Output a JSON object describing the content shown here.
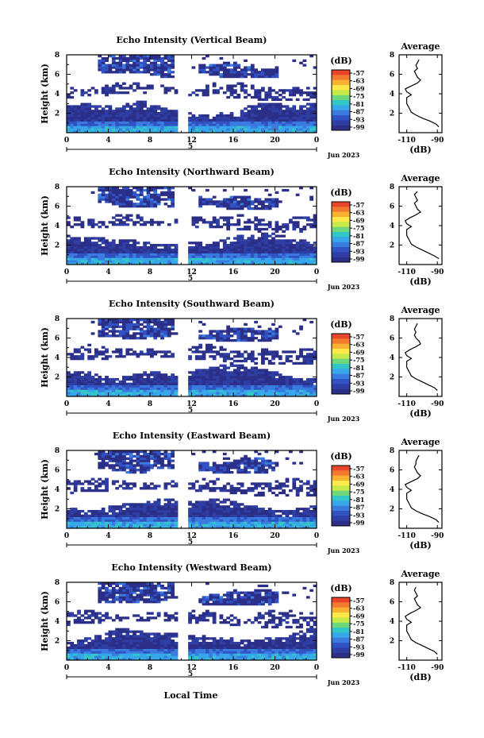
{
  "xlabel": "Local Time",
  "date_label": "Jun 2023",
  "day_label": "5",
  "y_label": "Height (km)",
  "avg_title": "Average",
  "avg_xlabel": "(dB)",
  "cbar_unit": "(dB)",
  "chart_data": [
    {
      "type": "heatmap",
      "title": "Echo Intensity (Vertical Beam)",
      "xlabel": "",
      "ylabel": "Height (km)",
      "xlim": [
        0,
        24
      ],
      "ylim": [
        0,
        8
      ],
      "xticks": [
        "0",
        "4",
        "8",
        "12",
        "16",
        "20",
        "0"
      ],
      "yticks": [
        "2",
        "4",
        "6",
        "8"
      ],
      "colorbar": {
        "label": "(dB)",
        "ticks": [
          "-57",
          "-63",
          "-69",
          "-75",
          "-81",
          "-87",
          "-93",
          "-99"
        ]
      },
      "data_gap": [
        10.5,
        11.8
      ],
      "average_profile": {
        "title": "Average",
        "xlabel": "(dB)",
        "xticks": [
          "-110",
          "-90"
        ],
        "yticks": [
          "2",
          "4",
          "6",
          "8"
        ],
        "height_km": [
          0.6,
          0.9,
          1.2,
          1.5,
          1.8,
          2.1,
          2.4,
          2.7,
          3.0,
          3.3,
          3.6,
          3.9,
          4.2,
          4.5,
          4.8,
          5.1,
          5.4,
          5.7,
          6.0,
          6.3,
          6.6,
          6.9,
          7.2,
          7.5
        ],
        "db": [
          -89,
          -91,
          -95,
          -100,
          -104,
          -107,
          -108,
          -109,
          -110,
          -110,
          -110,
          -107,
          -110,
          -111,
          -107,
          -103,
          -101,
          -103,
          -104,
          -105,
          -103,
          -104,
          -103,
          -102
        ]
      }
    },
    {
      "type": "heatmap",
      "title": "Echo Intensity (Northward Beam)",
      "xlabel": "",
      "ylabel": "Height (km)",
      "xlim": [
        0,
        24
      ],
      "ylim": [
        0,
        8
      ],
      "xticks": [
        "0",
        "4",
        "8",
        "12",
        "16",
        "20",
        "0"
      ],
      "yticks": [
        "2",
        "4",
        "6",
        "8"
      ],
      "colorbar": {
        "label": "(dB)",
        "ticks": [
          "-57",
          "-63",
          "-69",
          "-75",
          "-81",
          "-87",
          "-93",
          "-99"
        ]
      },
      "data_gap": [
        10.5,
        11.8
      ],
      "average_profile": {
        "title": "Average",
        "xlabel": "(dB)",
        "xticks": [
          "-110",
          "-90"
        ],
        "yticks": [
          "2",
          "4",
          "6",
          "8"
        ],
        "height_km": [
          0.6,
          0.9,
          1.2,
          1.5,
          1.8,
          2.1,
          2.4,
          2.7,
          3.0,
          3.3,
          3.6,
          3.9,
          4.2,
          4.5,
          4.8,
          5.1,
          5.4,
          5.7,
          6.0,
          6.3,
          6.6,
          6.9,
          7.2,
          7.5
        ],
        "db": [
          -89,
          -92,
          -96,
          -100,
          -104,
          -107,
          -108,
          -109,
          -110,
          -110,
          -110,
          -107,
          -110,
          -111,
          -108,
          -104,
          -101,
          -103,
          -104,
          -105,
          -103,
          -104,
          -105,
          -103
        ]
      }
    },
    {
      "type": "heatmap",
      "title": "Echo Intensity (Southward Beam)",
      "xlabel": "",
      "ylabel": "Height (km)",
      "xlim": [
        0,
        24
      ],
      "ylim": [
        0,
        8
      ],
      "xticks": [
        "0",
        "4",
        "8",
        "12",
        "16",
        "20",
        "0"
      ],
      "yticks": [
        "2",
        "4",
        "6",
        "8"
      ],
      "colorbar": {
        "label": "(dB)",
        "ticks": [
          "-57",
          "-63",
          "-69",
          "-75",
          "-81",
          "-87",
          "-93",
          "-99"
        ]
      },
      "data_gap": [
        10.5,
        11.8
      ],
      "average_profile": {
        "title": "Average",
        "xlabel": "(dB)",
        "xticks": [
          "-110",
          "-90"
        ],
        "yticks": [
          "2",
          "4",
          "6",
          "8"
        ],
        "height_km": [
          0.6,
          0.9,
          1.2,
          1.5,
          1.8,
          2.1,
          2.4,
          2.7,
          3.0,
          3.3,
          3.6,
          3.9,
          4.2,
          4.5,
          4.8,
          5.1,
          5.4,
          5.7,
          6.0,
          6.3,
          6.6,
          6.9,
          7.2,
          7.5
        ],
        "db": [
          -90,
          -92,
          -96,
          -100,
          -104,
          -107,
          -108,
          -109,
          -110,
          -110,
          -110,
          -107,
          -110,
          -111,
          -108,
          -104,
          -101,
          -102,
          -104,
          -105,
          -104,
          -105,
          -104,
          -103
        ]
      }
    },
    {
      "type": "heatmap",
      "title": "Echo Intensity (Eastward Beam)",
      "xlabel": "",
      "ylabel": "Height (km)",
      "xlim": [
        0,
        24
      ],
      "ylim": [
        0,
        8
      ],
      "xticks": [
        "0",
        "4",
        "8",
        "12",
        "16",
        "20",
        "0"
      ],
      "yticks": [
        "2",
        "4",
        "6",
        "8"
      ],
      "colorbar": {
        "label": "(dB)",
        "ticks": [
          "-57",
          "-63",
          "-69",
          "-75",
          "-81",
          "-87",
          "-93",
          "-99"
        ]
      },
      "data_gap": [
        10.5,
        11.8
      ],
      "average_profile": {
        "title": "Average",
        "xlabel": "(dB)",
        "xticks": [
          "-110",
          "-90"
        ],
        "yticks": [
          "2",
          "4",
          "6",
          "8"
        ],
        "height_km": [
          0.6,
          0.9,
          1.2,
          1.5,
          1.8,
          2.1,
          2.4,
          2.7,
          3.0,
          3.3,
          3.6,
          3.9,
          4.2,
          4.5,
          4.8,
          5.1,
          5.4,
          5.7,
          6.0,
          6.3,
          6.6,
          6.9,
          7.2,
          7.5
        ],
        "db": [
          -89,
          -91,
          -95,
          -100,
          -104,
          -107,
          -108,
          -109,
          -110,
          -110,
          -110,
          -107,
          -110,
          -111,
          -107,
          -103,
          -101,
          -103,
          -104,
          -105,
          -104,
          -104,
          -103,
          -102
        ]
      }
    },
    {
      "type": "heatmap",
      "title": "Echo Intensity (Westward Beam)",
      "xlabel": "Local Time",
      "ylabel": "Height (km)",
      "xlim": [
        0,
        24
      ],
      "ylim": [
        0,
        8
      ],
      "xticks": [
        "0",
        "4",
        "8",
        "12",
        "16",
        "20",
        "0"
      ],
      "yticks": [
        "2",
        "4",
        "6",
        "8"
      ],
      "colorbar": {
        "label": "(dB)",
        "ticks": [
          "-57",
          "-63",
          "-69",
          "-75",
          "-81",
          "-87",
          "-93",
          "-99"
        ]
      },
      "data_gap": [
        10.5,
        11.8
      ],
      "average_profile": {
        "title": "Average",
        "xlabel": "(dB)",
        "xticks": [
          "-110",
          "-90"
        ],
        "yticks": [
          "2",
          "4",
          "6",
          "8"
        ],
        "height_km": [
          0.6,
          0.9,
          1.2,
          1.5,
          1.8,
          2.1,
          2.4,
          2.7,
          3.0,
          3.3,
          3.6,
          3.9,
          4.2,
          4.5,
          4.8,
          5.1,
          5.4,
          5.7,
          6.0,
          6.3,
          6.6,
          6.9,
          7.2,
          7.5
        ],
        "db": [
          -90,
          -92,
          -96,
          -100,
          -104,
          -107,
          -108,
          -109,
          -110,
          -110,
          -110,
          -107,
          -110,
          -111,
          -108,
          -104,
          -101,
          -103,
          -104,
          -105,
          -103,
          -104,
          -105,
          -104
        ]
      }
    }
  ]
}
